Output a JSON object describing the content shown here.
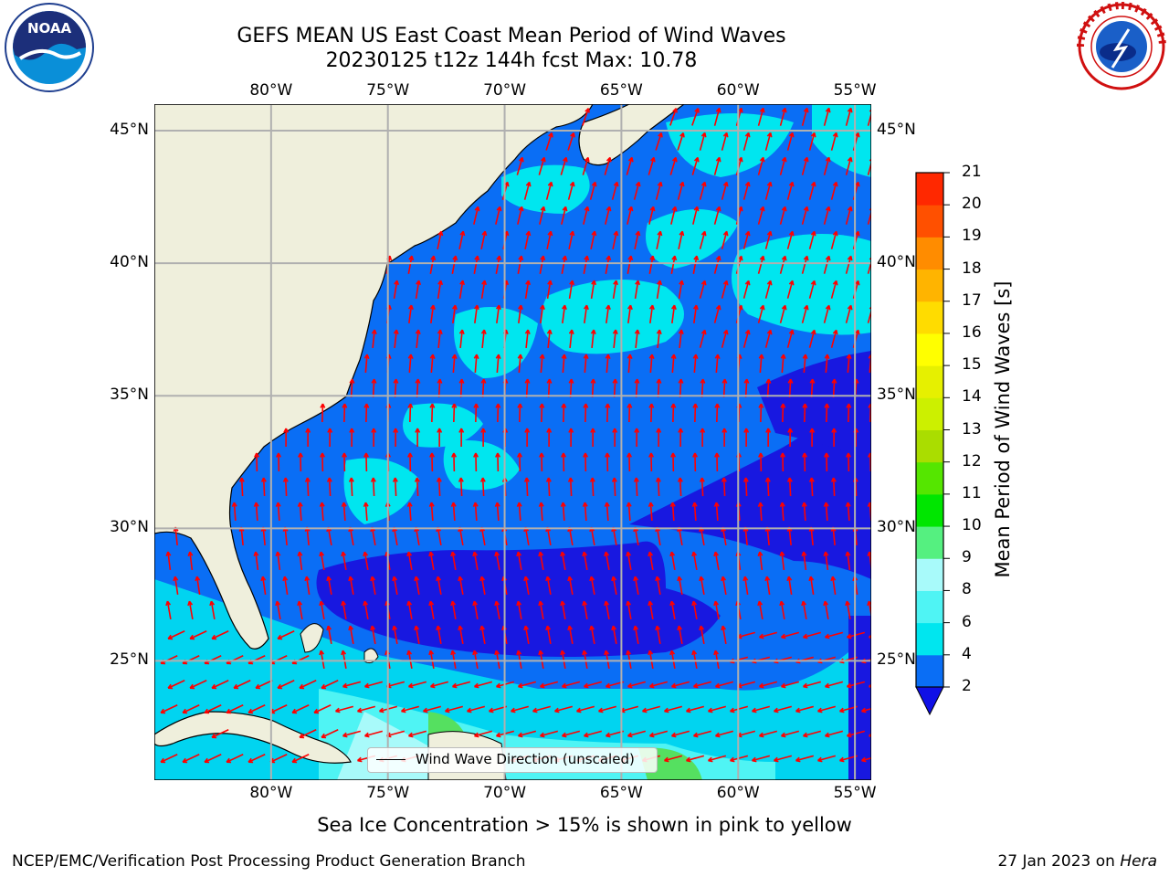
{
  "title": {
    "line1": "GEFS MEAN US East Coast Mean Period of Wind Waves",
    "line2": "20230125 t12z 144h fcst   Max: 10.78"
  },
  "map": {
    "lon_ticks": [
      "80°W",
      "75°W",
      "70°W",
      "65°W",
      "60°W",
      "55°W"
    ],
    "lat_ticks": [
      "45°N",
      "40°N",
      "35°N",
      "30°N",
      "25°N"
    ],
    "lon_range": [
      -85,
      -54.3
    ],
    "lat_range": [
      20.5,
      46
    ],
    "grid_lines": true,
    "colors": {
      "land": "#efefdc",
      "ocean_base": "#0a6ef5",
      "low_period": "#1818e0",
      "cyan": "#00e6ef",
      "light_cyan": "#4ff4f4",
      "green": "#55e060",
      "arrow": "#ff0000",
      "grid": "#b0b0b0",
      "coast": "#000000"
    }
  },
  "legend": {
    "label": "Wind Wave Direction (unscaled)"
  },
  "colorbar": {
    "label": "Mean Period of Wind Waves [s]",
    "ticks": [
      "2",
      "4",
      "6",
      "8",
      "9",
      "10",
      "11",
      "12",
      "13",
      "14",
      "15",
      "16",
      "17",
      "18",
      "19",
      "20",
      "21"
    ],
    "level_colors": [
      "#0a6ef5",
      "#00e6ef",
      "#4ff4f4",
      "#a8fafa",
      "#55f080",
      "#00e600",
      "#55e600",
      "#aadd00",
      "#ccf000",
      "#e6f000",
      "#ffff00",
      "#ffdc00",
      "#ffb400",
      "#ff8c00",
      "#ff5000",
      "#ff2800",
      "#ff0000"
    ],
    "extend_color": "#1010e6"
  },
  "caption": "Sea Ice Concentration > 15% is shown in pink to yellow",
  "footer": {
    "left": "NCEP/EMC/Verification Post Processing Product Generation Branch",
    "right_date": "27 Jan 2023 on ",
    "right_host": "Hera"
  },
  "logos": {
    "noaa": {
      "text": "NOAA",
      "icon": "noaa-logo"
    },
    "nws": {
      "icon": "nws-logo"
    }
  }
}
